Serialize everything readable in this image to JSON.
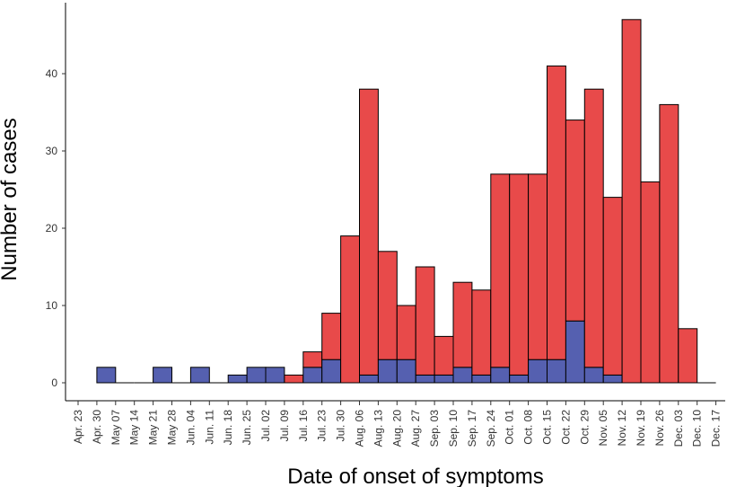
{
  "chart_data": {
    "type": "bar",
    "stacked": true,
    "title": "",
    "xlabel": "Date of onset of symptoms",
    "ylabel": "Number of cases",
    "ylim": [
      0,
      50
    ],
    "yticks": [
      0,
      10,
      20,
      30,
      40
    ],
    "grid": false,
    "x_tick_labels": [
      "Apr. 23",
      "Apr. 30",
      "May 07",
      "May 14",
      "May 21",
      "May 28",
      "Jun. 04",
      "Jun. 11",
      "Jun. 18",
      "Jun. 25",
      "Jul. 02",
      "Jul. 09",
      "Jul. 16",
      "Jul. 23",
      "Jul. 30",
      "Aug. 06",
      "Aug. 13",
      "Aug. 20",
      "Aug. 27",
      "Sep. 03",
      "Sep. 10",
      "Sep. 17",
      "Sep. 24",
      "Oct. 01",
      "Oct. 08",
      "Oct. 15",
      "Oct. 22",
      "Oct. 29",
      "Nov. 05",
      "Nov. 12",
      "Nov. 19",
      "Nov. 26",
      "Dec. 03",
      "Dec. 10",
      "Dec. 17"
    ],
    "categories": [
      "Apr. 30",
      "May 07",
      "May 14",
      "May 21",
      "May 28",
      "Jun. 04",
      "Jun. 11",
      "Jun. 18",
      "Jun. 25",
      "Jul. 02",
      "Jul. 09",
      "Jul. 16",
      "Jul. 23",
      "Jul. 30",
      "Aug. 06",
      "Aug. 13",
      "Aug. 20",
      "Aug. 27",
      "Sep. 03",
      "Sep. 10",
      "Sep. 17",
      "Sep. 24",
      "Oct. 01",
      "Oct. 08",
      "Oct. 15",
      "Oct. 22",
      "Oct. 29",
      "Nov. 05",
      "Nov. 12",
      "Nov. 19",
      "Nov. 26",
      "Dec. 03",
      "Dec. 10"
    ],
    "series": [
      {
        "color": "#5560b0",
        "values": [
          2,
          0,
          0,
          2,
          0,
          2,
          0,
          1,
          2,
          2,
          0,
          2,
          3,
          0,
          1,
          3,
          3,
          1,
          1,
          2,
          1,
          2,
          1,
          3,
          3,
          8,
          2,
          1,
          0,
          0,
          0,
          0,
          0
        ]
      },
      {
        "color": "#e84a4a",
        "values": [
          0,
          0,
          0,
          0,
          0,
          0,
          0,
          0,
          0,
          0,
          1,
          2,
          6,
          19,
          37,
          14,
          7,
          14,
          5,
          11,
          11,
          25,
          26,
          24,
          38,
          26,
          36,
          23,
          47,
          26,
          36,
          7,
          0
        ]
      }
    ]
  }
}
